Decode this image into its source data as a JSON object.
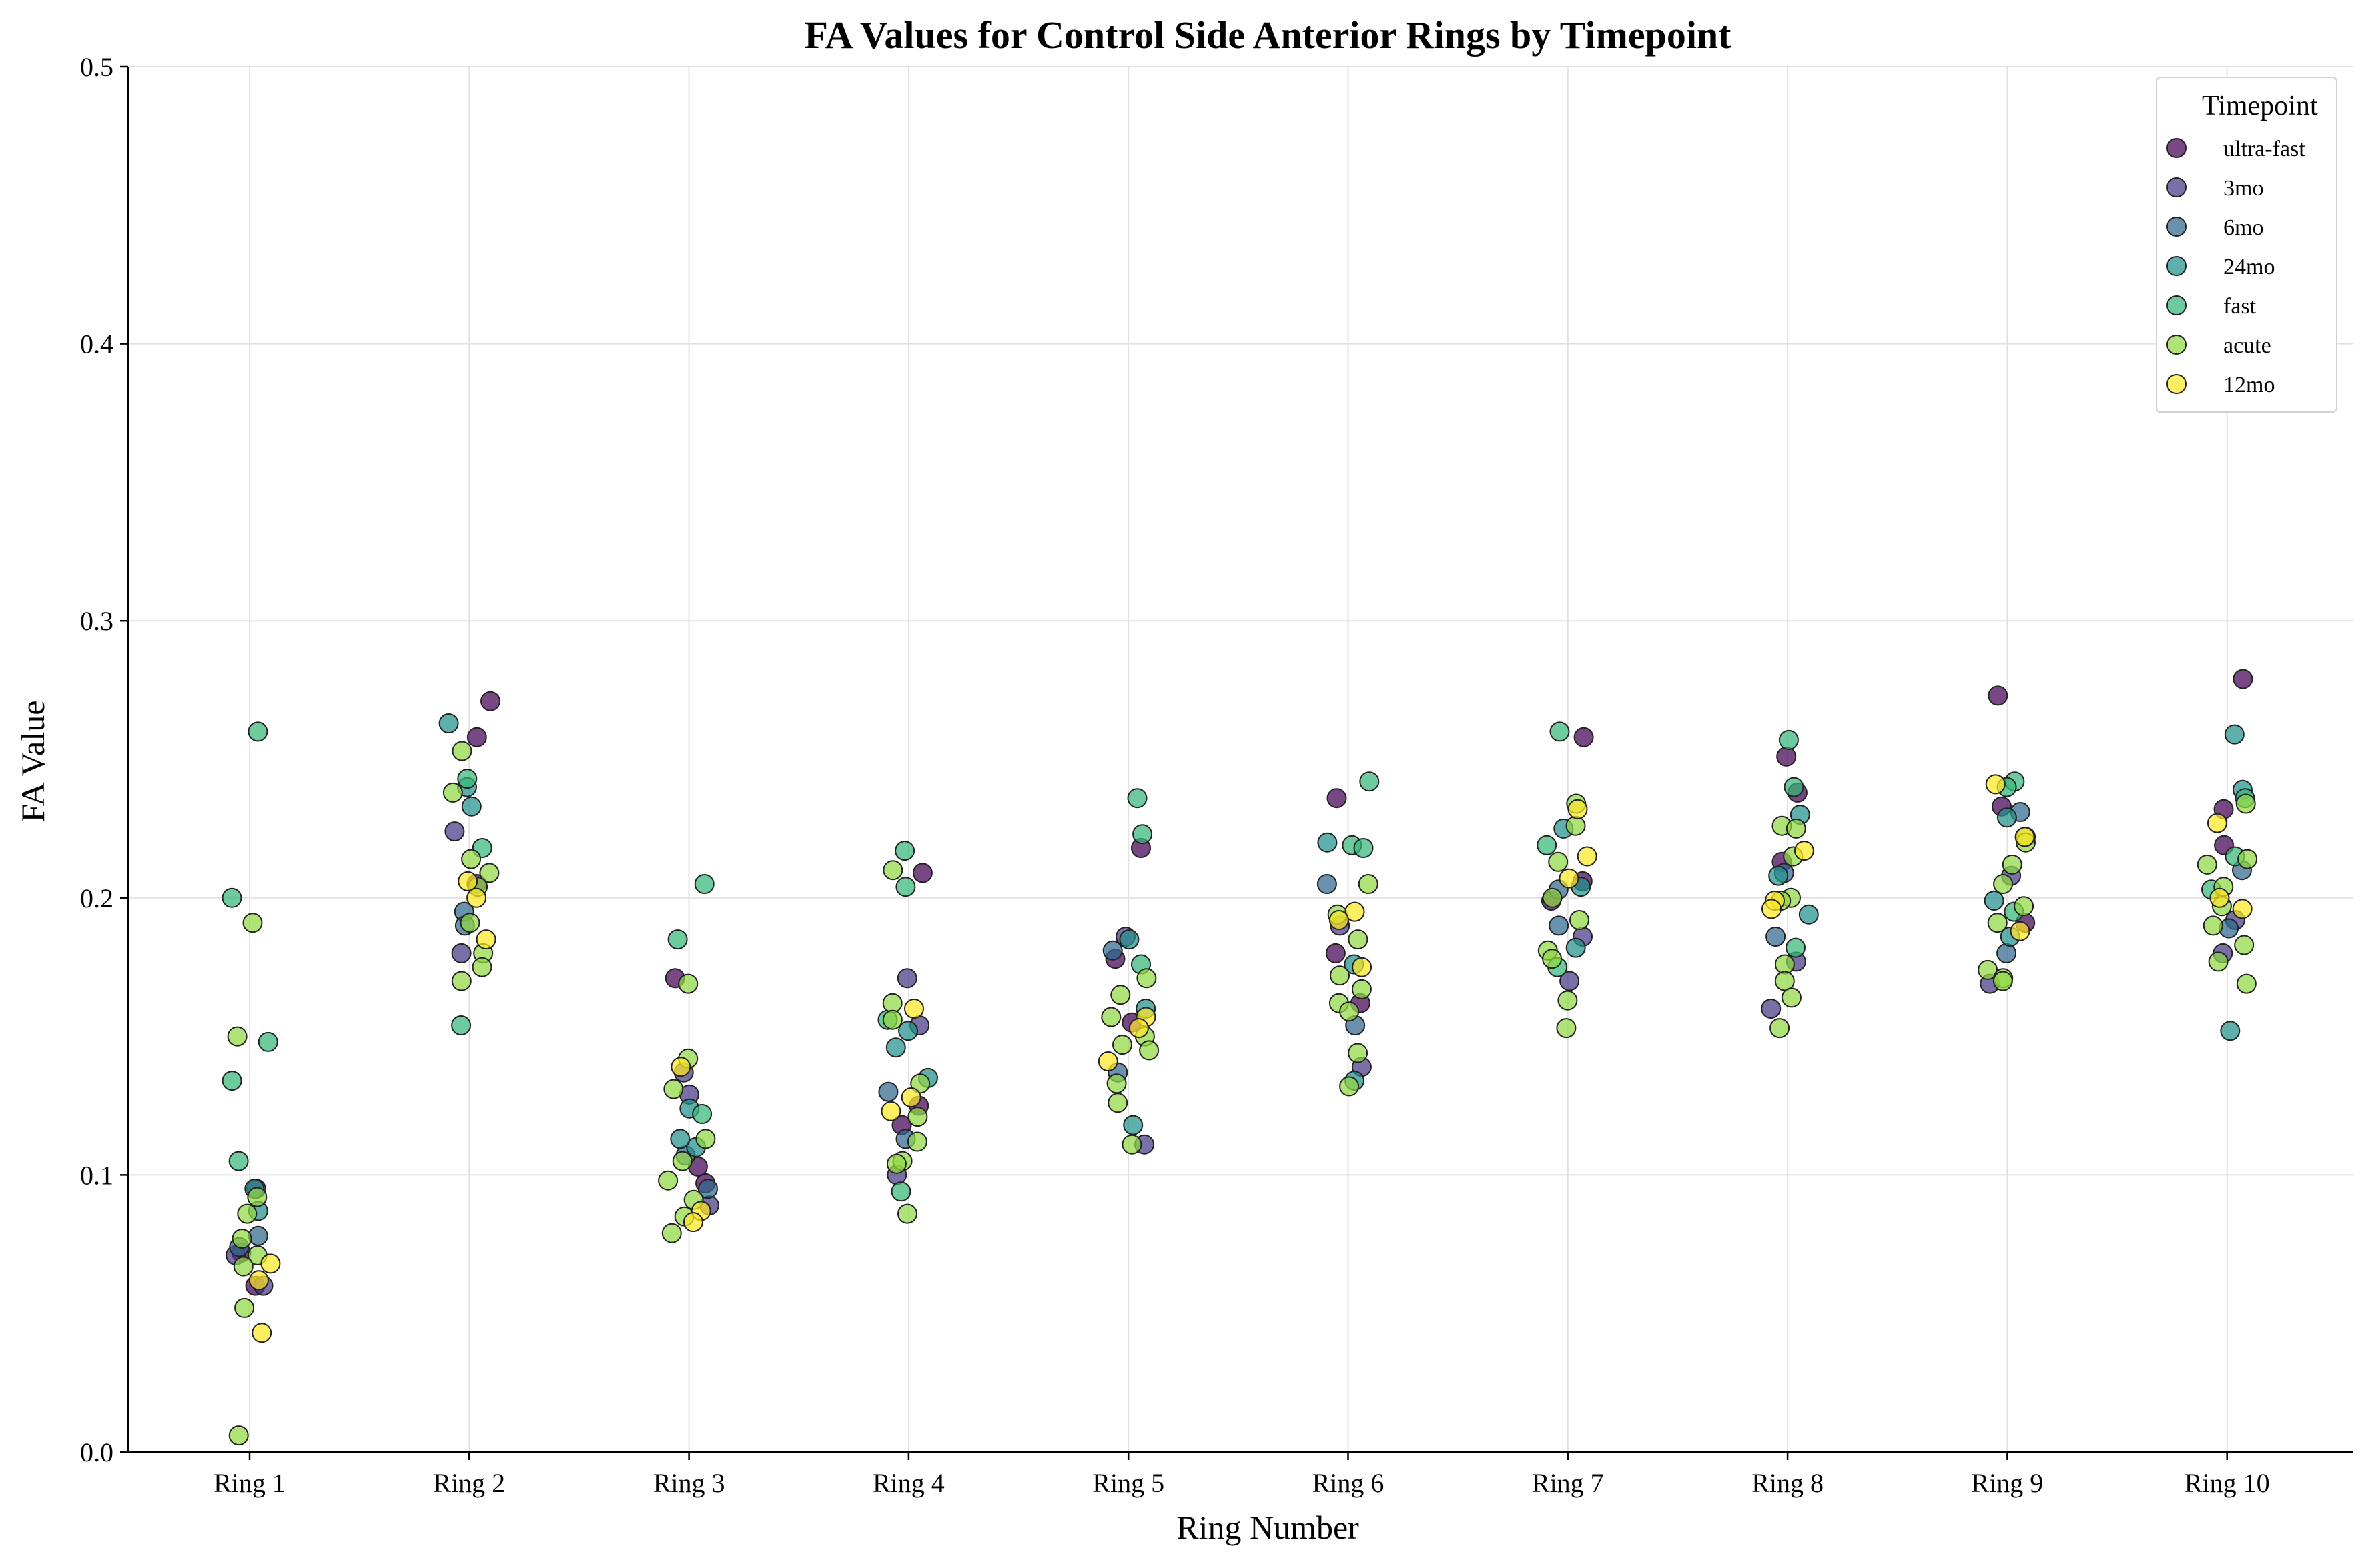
{
  "chart_data": {
    "type": "scatter",
    "title": "FA Values for Control Side Anterior Rings by Timepoint",
    "xlabel": "Ring Number",
    "ylabel": "FA Value",
    "ylim": [
      0,
      0.5
    ],
    "yticks": [
      "0.0",
      "0.1",
      "0.2",
      "0.3",
      "0.4",
      "0.5"
    ],
    "categories": [
      "Ring 1",
      "Ring 2",
      "Ring 3",
      "Ring 4",
      "Ring 5",
      "Ring 6",
      "Ring 7",
      "Ring 8",
      "Ring 9",
      "Ring 10"
    ],
    "grid": true,
    "legend": {
      "title": "Timepoint",
      "placement": "top-right"
    },
    "series": [
      {
        "name": "ultra-fast",
        "color": "#440154",
        "values": [
          [
            1,
            0.095
          ],
          [
            1,
            0.072
          ],
          [
            1,
            0.06
          ],
          [
            2,
            0.271
          ],
          [
            2,
            0.258
          ],
          [
            2,
            0.205
          ],
          [
            3,
            0.171
          ],
          [
            3,
            0.097
          ],
          [
            3,
            0.103
          ],
          [
            4,
            0.209
          ],
          [
            4,
            0.125
          ],
          [
            4,
            0.118
          ],
          [
            5,
            0.218
          ],
          [
            5,
            0.178
          ],
          [
            5,
            0.155
          ],
          [
            6,
            0.236
          ],
          [
            6,
            0.18
          ],
          [
            6,
            0.162
          ],
          [
            7,
            0.258
          ],
          [
            7,
            0.206
          ],
          [
            7,
            0.199
          ],
          [
            8,
            0.251
          ],
          [
            8,
            0.238
          ],
          [
            8,
            0.213
          ],
          [
            9,
            0.273
          ],
          [
            9,
            0.233
          ],
          [
            9,
            0.191
          ],
          [
            10,
            0.279
          ],
          [
            10,
            0.232
          ],
          [
            10,
            0.219
          ]
        ]
      },
      {
        "name": "3mo",
        "color": "#443983",
        "values": [
          [
            1,
            0.06
          ],
          [
            1,
            0.071
          ],
          [
            2,
            0.224
          ],
          [
            2,
            0.18
          ],
          [
            3,
            0.137
          ],
          [
            3,
            0.129
          ],
          [
            3,
            0.089
          ],
          [
            4,
            0.171
          ],
          [
            4,
            0.154
          ],
          [
            4,
            0.1
          ],
          [
            5,
            0.186
          ],
          [
            5,
            0.111
          ],
          [
            6,
            0.139
          ],
          [
            6,
            0.19
          ],
          [
            7,
            0.17
          ],
          [
            7,
            0.186
          ],
          [
            8,
            0.177
          ],
          [
            8,
            0.16
          ],
          [
            9,
            0.208
          ],
          [
            9,
            0.169
          ],
          [
            10,
            0.192
          ],
          [
            10,
            0.18
          ]
        ]
      },
      {
        "name": "6mo",
        "color": "#31688e",
        "values": [
          [
            1,
            0.078
          ],
          [
            1,
            0.074
          ],
          [
            2,
            0.195
          ],
          [
            2,
            0.19
          ],
          [
            3,
            0.107
          ],
          [
            3,
            0.095
          ],
          [
            4,
            0.113
          ],
          [
            4,
            0.13
          ],
          [
            5,
            0.137
          ],
          [
            5,
            0.181
          ],
          [
            6,
            0.154
          ],
          [
            6,
            0.205
          ],
          [
            7,
            0.19
          ],
          [
            7,
            0.203
          ],
          [
            8,
            0.209
          ],
          [
            8,
            0.186
          ],
          [
            9,
            0.231
          ],
          [
            9,
            0.18
          ],
          [
            10,
            0.189
          ],
          [
            10,
            0.21
          ]
        ]
      },
      {
        "name": "24mo",
        "color": "#21918c",
        "values": [
          [
            1,
            0.095
          ],
          [
            1,
            0.087
          ],
          [
            2,
            0.263
          ],
          [
            2,
            0.233
          ],
          [
            2,
            0.24
          ],
          [
            3,
            0.124
          ],
          [
            3,
            0.11
          ],
          [
            3,
            0.113
          ],
          [
            4,
            0.152
          ],
          [
            4,
            0.135
          ],
          [
            4,
            0.146
          ],
          [
            5,
            0.185
          ],
          [
            5,
            0.16
          ],
          [
            5,
            0.118
          ],
          [
            6,
            0.22
          ],
          [
            6,
            0.176
          ],
          [
            6,
            0.134
          ],
          [
            7,
            0.225
          ],
          [
            7,
            0.204
          ],
          [
            7,
            0.182
          ],
          [
            8,
            0.208
          ],
          [
            8,
            0.23
          ],
          [
            8,
            0.194
          ],
          [
            9,
            0.229
          ],
          [
            9,
            0.199
          ],
          [
            9,
            0.186
          ],
          [
            10,
            0.259
          ],
          [
            10,
            0.239
          ],
          [
            10,
            0.152
          ]
        ]
      },
      {
        "name": "fast",
        "color": "#35b779",
        "values": [
          [
            1,
            0.26
          ],
          [
            1,
            0.2
          ],
          [
            1,
            0.148
          ],
          [
            1,
            0.134
          ],
          [
            1,
            0.105
          ],
          [
            2,
            0.243
          ],
          [
            2,
            0.218
          ],
          [
            2,
            0.154
          ],
          [
            3,
            0.205
          ],
          [
            3,
            0.185
          ],
          [
            3,
            0.122
          ],
          [
            4,
            0.217
          ],
          [
            4,
            0.204
          ],
          [
            4,
            0.156
          ],
          [
            4,
            0.094
          ],
          [
            5,
            0.236
          ],
          [
            5,
            0.223
          ],
          [
            5,
            0.176
          ],
          [
            6,
            0.242
          ],
          [
            6,
            0.219
          ],
          [
            6,
            0.218
          ],
          [
            7,
            0.26
          ],
          [
            7,
            0.219
          ],
          [
            7,
            0.175
          ],
          [
            8,
            0.257
          ],
          [
            8,
            0.24
          ],
          [
            8,
            0.182
          ],
          [
            9,
            0.242
          ],
          [
            9,
            0.24
          ],
          [
            9,
            0.195
          ],
          [
            10,
            0.236
          ],
          [
            10,
            0.215
          ],
          [
            10,
            0.203
          ]
        ]
      },
      {
        "name": "acute",
        "color": "#90d743",
        "values": [
          [
            1,
            0.191
          ],
          [
            1,
            0.15
          ],
          [
            1,
            0.092
          ],
          [
            1,
            0.086
          ],
          [
            1,
            0.077
          ],
          [
            1,
            0.071
          ],
          [
            1,
            0.067
          ],
          [
            1,
            0.052
          ],
          [
            1,
            0.006
          ],
          [
            2,
            0.253
          ],
          [
            2,
            0.238
          ],
          [
            2,
            0.214
          ],
          [
            2,
            0.209
          ],
          [
            2,
            0.204
          ],
          [
            2,
            0.191
          ],
          [
            2,
            0.18
          ],
          [
            2,
            0.175
          ],
          [
            2,
            0.17
          ],
          [
            3,
            0.169
          ],
          [
            3,
            0.142
          ],
          [
            3,
            0.131
          ],
          [
            3,
            0.113
          ],
          [
            3,
            0.105
          ],
          [
            3,
            0.098
          ],
          [
            3,
            0.091
          ],
          [
            3,
            0.085
          ],
          [
            3,
            0.079
          ],
          [
            4,
            0.21
          ],
          [
            4,
            0.162
          ],
          [
            4,
            0.156
          ],
          [
            4,
            0.133
          ],
          [
            4,
            0.121
          ],
          [
            4,
            0.112
          ],
          [
            4,
            0.105
          ],
          [
            4,
            0.104
          ],
          [
            4,
            0.086
          ],
          [
            5,
            0.171
          ],
          [
            5,
            0.165
          ],
          [
            5,
            0.157
          ],
          [
            5,
            0.15
          ],
          [
            5,
            0.147
          ],
          [
            5,
            0.145
          ],
          [
            5,
            0.133
          ],
          [
            5,
            0.126
          ],
          [
            5,
            0.111
          ],
          [
            6,
            0.205
          ],
          [
            6,
            0.194
          ],
          [
            6,
            0.185
          ],
          [
            6,
            0.172
          ],
          [
            6,
            0.167
          ],
          [
            6,
            0.162
          ],
          [
            6,
            0.159
          ],
          [
            6,
            0.144
          ],
          [
            6,
            0.132
          ],
          [
            7,
            0.234
          ],
          [
            7,
            0.226
          ],
          [
            7,
            0.213
          ],
          [
            7,
            0.2
          ],
          [
            7,
            0.192
          ],
          [
            7,
            0.181
          ],
          [
            7,
            0.178
          ],
          [
            7,
            0.163
          ],
          [
            7,
            0.153
          ],
          [
            8,
            0.226
          ],
          [
            8,
            0.225
          ],
          [
            8,
            0.215
          ],
          [
            8,
            0.2
          ],
          [
            8,
            0.199
          ],
          [
            8,
            0.176
          ],
          [
            8,
            0.17
          ],
          [
            8,
            0.164
          ],
          [
            8,
            0.153
          ],
          [
            9,
            0.222
          ],
          [
            9,
            0.22
          ],
          [
            9,
            0.212
          ],
          [
            9,
            0.205
          ],
          [
            9,
            0.197
          ],
          [
            9,
            0.191
          ],
          [
            9,
            0.174
          ],
          [
            9,
            0.171
          ],
          [
            9,
            0.17
          ],
          [
            10,
            0.234
          ],
          [
            10,
            0.214
          ],
          [
            10,
            0.212
          ],
          [
            10,
            0.204
          ],
          [
            10,
            0.197
          ],
          [
            10,
            0.19
          ],
          [
            10,
            0.183
          ],
          [
            10,
            0.177
          ],
          [
            10,
            0.169
          ]
        ]
      },
      {
        "name": "12mo",
        "color": "#fde725",
        "values": [
          [
            1,
            0.062
          ],
          [
            1,
            0.068
          ],
          [
            1,
            0.043
          ],
          [
            2,
            0.206
          ],
          [
            2,
            0.2
          ],
          [
            2,
            0.185
          ],
          [
            3,
            0.139
          ],
          [
            3,
            0.087
          ],
          [
            3,
            0.083
          ],
          [
            4,
            0.16
          ],
          [
            4,
            0.128
          ],
          [
            4,
            0.123
          ],
          [
            5,
            0.157
          ],
          [
            5,
            0.153
          ],
          [
            5,
            0.141
          ],
          [
            6,
            0.195
          ],
          [
            6,
            0.192
          ],
          [
            6,
            0.175
          ],
          [
            7,
            0.232
          ],
          [
            7,
            0.215
          ],
          [
            7,
            0.207
          ],
          [
            8,
            0.217
          ],
          [
            8,
            0.199
          ],
          [
            8,
            0.196
          ],
          [
            9,
            0.241
          ],
          [
            9,
            0.222
          ],
          [
            9,
            0.188
          ],
          [
            10,
            0.227
          ],
          [
            10,
            0.2
          ],
          [
            10,
            0.196
          ]
        ]
      }
    ]
  }
}
